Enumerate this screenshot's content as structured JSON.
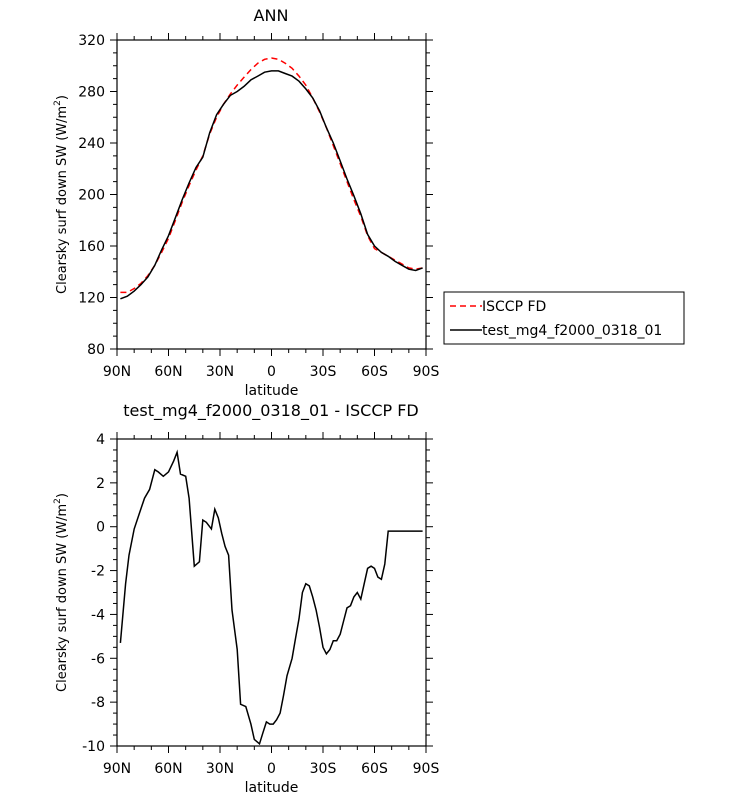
{
  "chart_data": [
    {
      "type": "line",
      "title": "ANN",
      "xlabel": "latitude",
      "ylabel": "Clearsky surf down SW (W/m",
      "ylabel_sup": "2",
      "ylabel_close": ")",
      "xlim": [
        90,
        -90
      ],
      "ylim": [
        80,
        320
      ],
      "xtick_values": [
        90,
        60,
        30,
        0,
        -30,
        -60,
        -90
      ],
      "xtick_labels": [
        "90N",
        "60N",
        "30N",
        "0",
        "30S",
        "60S",
        "90S"
      ],
      "ytick_values": [
        80,
        120,
        160,
        200,
        240,
        280,
        320
      ],
      "ytick_labels": [
        "80",
        "120",
        "160",
        "200",
        "240",
        "280",
        "320"
      ],
      "legend": {
        "placement": "right"
      },
      "series": [
        {
          "name": "ISCCP FD",
          "color": "#ff0000",
          "dash": "dashed",
          "x": [
            88,
            84,
            80,
            76,
            72,
            68,
            64,
            60,
            56,
            52,
            48,
            44,
            40,
            36,
            32,
            28,
            24,
            20,
            16,
            12,
            8,
            4,
            0,
            -4,
            -8,
            -12,
            -16,
            -20,
            -24,
            -28,
            -32,
            -36,
            -40,
            -44,
            -48,
            -52,
            -56,
            -60,
            -64,
            -68,
            -72,
            -76,
            -80,
            -84,
            -88
          ],
          "values": [
            124,
            124,
            127,
            131,
            137,
            145,
            155,
            166,
            180,
            194,
            207,
            219,
            230,
            247,
            260,
            270,
            278,
            285,
            291,
            297,
            302,
            305,
            306,
            305,
            302,
            298,
            292,
            285,
            275,
            264,
            252,
            238,
            224,
            210,
            196,
            183,
            168,
            158,
            155,
            152,
            149,
            146,
            143,
            142,
            143
          ]
        },
        {
          "name": "test_mg4_f2000_0318_01",
          "color": "#000000",
          "dash": "solid",
          "x": [
            88,
            84,
            80,
            76,
            72,
            68,
            64,
            60,
            56,
            52,
            48,
            44,
            40,
            36,
            32,
            28,
            24,
            20,
            16,
            12,
            8,
            4,
            0,
            -4,
            -8,
            -12,
            -16,
            -20,
            -24,
            -28,
            -32,
            -36,
            -40,
            -44,
            -48,
            -52,
            -56,
            -60,
            -64,
            -68,
            -72,
            -76,
            -80,
            -84,
            -88
          ],
          "values": [
            119,
            121,
            125,
            130,
            136,
            145,
            157,
            168,
            182,
            196,
            209,
            221,
            229,
            248,
            262,
            270,
            277,
            280,
            284,
            289,
            292,
            295,
            296,
            296,
            294,
            292,
            288,
            282,
            275,
            265,
            252,
            240,
            226,
            212,
            199,
            185,
            169,
            160,
            155,
            152,
            148,
            145,
            142,
            141,
            143
          ]
        }
      ]
    },
    {
      "type": "line",
      "title": "test_mg4_f2000_0318_01 - ISCCP FD",
      "xlabel": "latitude",
      "ylabel": "Clearsky surf down SW (W/m",
      "ylabel_sup": "2",
      "ylabel_close": ")",
      "xlim": [
        90,
        -90
      ],
      "ylim": [
        -10,
        4
      ],
      "xtick_values": [
        90,
        60,
        30,
        0,
        -30,
        -60,
        -90
      ],
      "xtick_labels": [
        "90N",
        "60N",
        "30N",
        "0",
        "30S",
        "60S",
        "90S"
      ],
      "ytick_values": [
        -10,
        -8,
        -6,
        -4,
        -2,
        0,
        2,
        4
      ],
      "ytick_labels": [
        "-10",
        "-8",
        "-6",
        "-4",
        "-2",
        "0",
        "2",
        "4"
      ],
      "series": [
        {
          "color": "#000000",
          "dash": "solid",
          "x": [
            88,
            85,
            83,
            80,
            77,
            74,
            71,
            68,
            66,
            63,
            60,
            57,
            55,
            53,
            50,
            48,
            45,
            42,
            40,
            38,
            35,
            33,
            31,
            29,
            27,
            25,
            23,
            20,
            18,
            15,
            12,
            10,
            7,
            5,
            3,
            1,
            -1,
            -3,
            -5,
            -7,
            -9,
            -12,
            -14,
            -16,
            -18,
            -20,
            -22,
            -24,
            -26,
            -28,
            -30,
            -32,
            -34,
            -36,
            -38,
            -40,
            -42,
            -44,
            -46,
            -48,
            -50,
            -52,
            -54,
            -56,
            -58,
            -60,
            -62,
            -64,
            -66,
            -68,
            -70,
            -72,
            -74,
            -76,
            -78,
            -80,
            -82,
            -84,
            -86,
            -88
          ],
          "values": [
            -5.3,
            -2.6,
            -1.3,
            -0.1,
            0.6,
            1.3,
            1.7,
            2.6,
            2.5,
            2.3,
            2.5,
            3.0,
            3.4,
            2.4,
            2.3,
            1.3,
            -1.8,
            -1.6,
            0.3,
            0.2,
            -0.1,
            0.8,
            0.4,
            -0.3,
            -0.9,
            -1.3,
            -3.8,
            -5.6,
            -8.1,
            -8.2,
            -9.0,
            -9.7,
            -9.9,
            -9.4,
            -8.9,
            -9.0,
            -9.0,
            -8.8,
            -8.5,
            -7.7,
            -6.8,
            -6.0,
            -5.1,
            -4.2,
            -3.0,
            -2.6,
            -2.7,
            -3.2,
            -3.8,
            -4.6,
            -5.5,
            -5.8,
            -5.6,
            -5.2,
            -5.2,
            -4.9,
            -4.3,
            -3.7,
            -3.6,
            -3.2,
            -3.0,
            -3.3,
            -2.6,
            -1.9,
            -1.8,
            -1.9,
            -2.3,
            -2.4,
            -1.7,
            -0.2,
            -0.2,
            -0.2,
            -0.2,
            -0.2,
            -0.2,
            -0.2,
            -0.2,
            -0.2,
            -0.2,
            -0.2
          ]
        }
      ]
    }
  ]
}
